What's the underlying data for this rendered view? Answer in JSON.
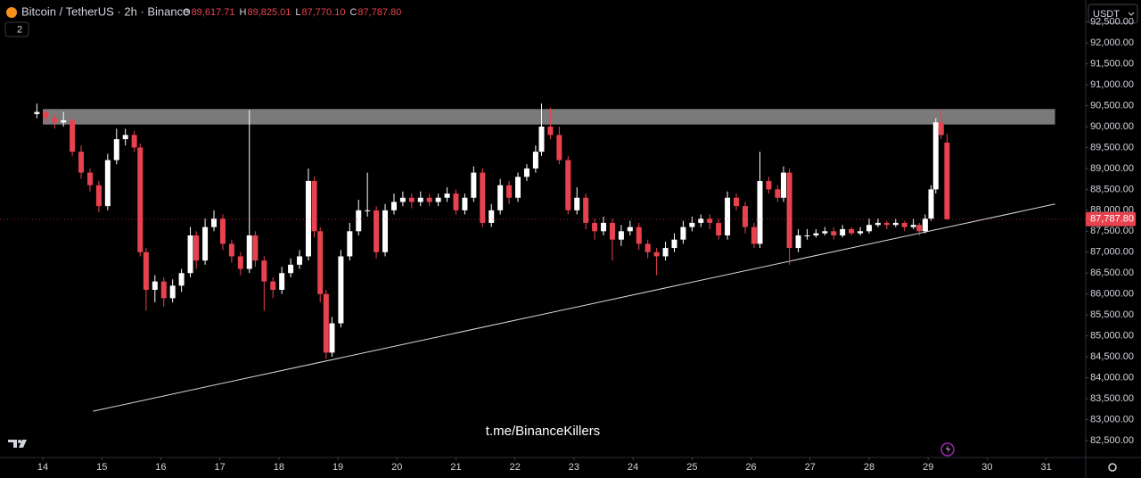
{
  "chart_data": {
    "type": "candlestick",
    "header": {
      "symbol": "Bitcoin / TetherUS · 2h · Binance",
      "ohlc": [
        {
          "label": "O",
          "value": "89,617.71"
        },
        {
          "label": "H",
          "value": "89,825.01"
        },
        {
          "label": "L",
          "value": "87,770.10"
        },
        {
          "label": "C",
          "value": "87,787.80"
        }
      ],
      "indicators": "2",
      "currency": "USDT"
    },
    "watermark": "t.me/BinanceKillers",
    "up_color": "#ffffff",
    "down_color": "#e8424f",
    "xlim": [
      13.275,
      31.67
    ],
    "ylim": [
      82094,
      93025
    ],
    "xticks": [
      14,
      15,
      16,
      17,
      18,
      19,
      20,
      21,
      22,
      23,
      24,
      25,
      26,
      27,
      28,
      29,
      30,
      31
    ],
    "yticks": [
      {
        "value": 82500,
        "label": "82,500.00"
      },
      {
        "value": 83000,
        "label": "83,000.00"
      },
      {
        "value": 83500,
        "label": "83,500.00"
      },
      {
        "value": 84000,
        "label": "84,000.00"
      },
      {
        "value": 84500,
        "label": "84,500.00"
      },
      {
        "value": 85000,
        "label": "85,000.00"
      },
      {
        "value": 85500,
        "label": "85,500.00"
      },
      {
        "value": 86000,
        "label": "86,000.00"
      },
      {
        "value": 86500,
        "label": "86,500.00"
      },
      {
        "value": 87000,
        "label": "87,000.00"
      },
      {
        "value": 87500,
        "label": "87,500.00"
      },
      {
        "value": 88000,
        "label": "88,000.00"
      },
      {
        "value": 88500,
        "label": "88,500.00"
      },
      {
        "value": 89000,
        "label": "89,000.00"
      },
      {
        "value": 89500,
        "label": "89,500.00"
      },
      {
        "value": 90000,
        "label": "90,000.00"
      },
      {
        "value": 90500,
        "label": "90,500.00"
      },
      {
        "value": 91000,
        "label": "91,000.00"
      },
      {
        "value": 91500,
        "label": "91,500.00"
      },
      {
        "value": 92000,
        "label": "92,000.00"
      },
      {
        "value": 92500,
        "label": "92,500.00"
      }
    ],
    "last_price": {
      "value": 87787.8,
      "label": "87,787.80"
    },
    "zone": {
      "x": [
        14.0,
        31.15
      ],
      "y": [
        90050,
        90420
      ],
      "color": "#7a7a7a"
    },
    "trendline": {
      "x": [
        14.85,
        31.15
      ],
      "y": [
        83200,
        88150
      ],
      "color": "#d9d9d9"
    },
    "x": [
      13.9,
      14.05,
      14.2,
      14.35,
      14.5,
      14.65,
      14.8,
      14.95,
      15.1,
      15.25,
      15.4,
      15.55,
      15.65,
      15.75,
      15.9,
      16.05,
      16.2,
      16.35,
      16.5,
      16.6,
      16.75,
      16.9,
      17.05,
      17.2,
      17.35,
      17.5,
      17.6,
      17.75,
      17.9,
      18.05,
      18.2,
      18.35,
      18.5,
      18.6,
      18.7,
      18.8,
      18.9,
      19.05,
      19.2,
      19.35,
      19.5,
      19.65,
      19.8,
      19.95,
      20.1,
      20.25,
      20.4,
      20.55,
      20.7,
      20.85,
      21.0,
      21.15,
      21.3,
      21.45,
      21.6,
      21.75,
      21.9,
      22.05,
      22.2,
      22.35,
      22.45,
      22.6,
      22.75,
      22.9,
      23.05,
      23.2,
      23.35,
      23.5,
      23.65,
      23.8,
      23.95,
      24.1,
      24.25,
      24.4,
      24.55,
      24.7,
      24.85,
      25.0,
      25.15,
      25.3,
      25.45,
      25.6,
      25.75,
      25.9,
      26.05,
      26.15,
      26.3,
      26.45,
      26.55,
      26.65,
      26.8,
      26.95,
      27.1,
      27.25,
      27.4,
      27.55,
      27.7,
      27.85,
      28.0,
      28.15,
      28.3,
      28.45,
      28.6,
      28.75,
      28.85,
      28.95,
      29.05,
      29.13,
      29.22,
      29.32
    ],
    "open": [
      90300,
      90350,
      90200,
      90100,
      90150,
      89400,
      88900,
      88600,
      88100,
      89200,
      89700,
      89800,
      89500,
      87000,
      86100,
      86300,
      85900,
      86200,
      86500,
      87400,
      86800,
      87600,
      87800,
      87200,
      86900,
      86600,
      87400,
      86800,
      86300,
      86100,
      86500,
      86700,
      86900,
      88700,
      87500,
      86000,
      84600,
      85300,
      86900,
      87500,
      88000,
      88000,
      87000,
      88000,
      88200,
      88300,
      88200,
      88300,
      88200,
      88300,
      88400,
      88000,
      88300,
      88900,
      87700,
      88000,
      88600,
      88300,
      88800,
      89000,
      89400,
      90000,
      89800,
      89200,
      88000,
      88300,
      87700,
      87500,
      87700,
      87300,
      87500,
      87600,
      87200,
      87000,
      86900,
      87100,
      87300,
      87600,
      87700,
      87800,
      87700,
      87400,
      88300,
      88100,
      87600,
      87200,
      88700,
      88500,
      88300,
      88900,
      87100,
      87400,
      87400,
      87450,
      87500,
      87400,
      87550,
      87450,
      87500,
      87650,
      87700,
      87650,
      87700,
      87600,
      87650,
      87500,
      87800,
      88500,
      90100,
      89617.71
    ],
    "high": [
      90550,
      90400,
      90300,
      90350,
      90200,
      89550,
      89000,
      88700,
      89350,
      89950,
      89950,
      89900,
      89600,
      87100,
      86450,
      86400,
      86350,
      86600,
      87600,
      87500,
      87800,
      88000,
      87900,
      87300,
      87000,
      90400,
      87500,
      86900,
      86400,
      86650,
      86850,
      87050,
      89000,
      88800,
      87600,
      86100,
      85450,
      87050,
      87700,
      88250,
      88900,
      88100,
      88150,
      88400,
      88450,
      88400,
      88450,
      88400,
      88400,
      88550,
      88500,
      88400,
      89050,
      89000,
      88150,
      88750,
      88700,
      88900,
      89100,
      89550,
      90550,
      90450,
      90000,
      89300,
      88550,
      88400,
      87800,
      87850,
      87800,
      87650,
      87750,
      87700,
      87300,
      87100,
      87250,
      87450,
      87750,
      87850,
      87900,
      87900,
      87800,
      88450,
      88400,
      88200,
      87700,
      89400,
      88800,
      88600,
      89050,
      89000,
      87550,
      87550,
      87550,
      87600,
      87600,
      87650,
      87600,
      87600,
      87800,
      87800,
      87750,
      87800,
      87750,
      87800,
      87700,
      87900,
      88600,
      90200,
      90400,
      89825.01
    ],
    "low": [
      90200,
      90100,
      89950,
      90000,
      89300,
      88750,
      88450,
      87950,
      88000,
      89100,
      89550,
      89400,
      86900,
      85600,
      85800,
      85700,
      85800,
      86050,
      86400,
      86600,
      86700,
      87500,
      87050,
      86750,
      86450,
      86500,
      86650,
      85600,
      85900,
      86000,
      86400,
      86600,
      86800,
      87350,
      85800,
      84450,
      84500,
      85200,
      86800,
      87400,
      87850,
      86850,
      86900,
      87900,
      88100,
      88050,
      88100,
      88100,
      88100,
      88200,
      87900,
      87900,
      88200,
      87600,
      87600,
      87900,
      88150,
      88200,
      88700,
      88900,
      89300,
      89700,
      89100,
      87900,
      87900,
      87550,
      87300,
      87400,
      86800,
      87150,
      87400,
      87050,
      86850,
      86450,
      86800,
      87000,
      87200,
      87500,
      87600,
      87550,
      87300,
      87300,
      88000,
      87450,
      87100,
      87100,
      88400,
      88200,
      88200,
      86700,
      87000,
      87300,
      87350,
      87400,
      87300,
      87350,
      87400,
      87400,
      87450,
      87600,
      87550,
      87600,
      87500,
      87550,
      87400,
      87450,
      87750,
      88400,
      89700,
      87770.1
    ],
    "close": [
      90350,
      90200,
      90100,
      90150,
      89400,
      88900,
      88600,
      88100,
      89200,
      89700,
      89800,
      89500,
      87000,
      86100,
      86300,
      85900,
      86200,
      86500,
      87400,
      86800,
      87600,
      87800,
      87200,
      86900,
      86600,
      87400,
      86800,
      86300,
      86100,
      86500,
      86700,
      86900,
      88700,
      87500,
      86000,
      84600,
      85300,
      86900,
      87500,
      88000,
      88000,
      87000,
      88000,
      88200,
      88300,
      88200,
      88300,
      88200,
      88300,
      88400,
      88000,
      88300,
      88900,
      87700,
      88000,
      88600,
      88300,
      88800,
      89000,
      89400,
      90000,
      89800,
      89200,
      88000,
      88300,
      87700,
      87500,
      87700,
      87300,
      87500,
      87600,
      87200,
      87000,
      86900,
      87100,
      87300,
      87600,
      87700,
      87800,
      87700,
      87400,
      88300,
      88100,
      87600,
      87200,
      88700,
      88500,
      88300,
      88900,
      87100,
      87400,
      87400,
      87450,
      87500,
      87400,
      87550,
      87450,
      87500,
      87650,
      87700,
      87650,
      87700,
      87600,
      87650,
      87500,
      87800,
      88500,
      90100,
      89800,
      87787.8
    ]
  }
}
